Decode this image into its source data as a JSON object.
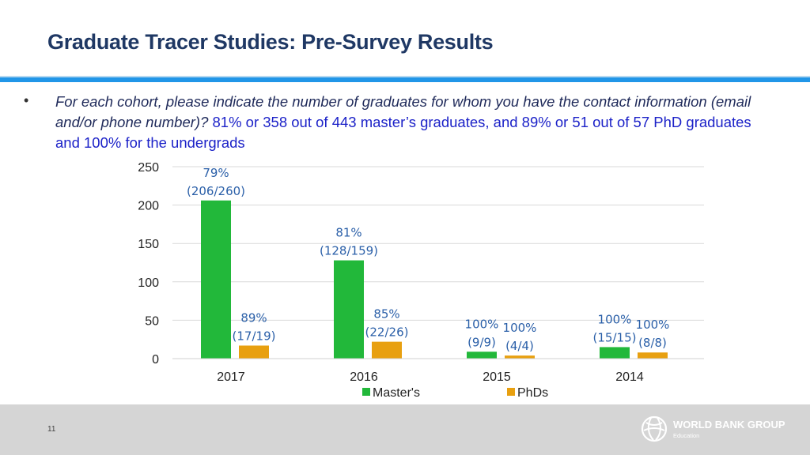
{
  "slide": {
    "title": "Graduate Tracer Studies: Pre-Survey Results",
    "bullet_marker": "•",
    "question": "For each cohort, please indicate the number of graduates for whom you have the contact information (email and/or phone number)?",
    "answer": " 81% or 358 out of 443 master’s graduates, and 89% or 51 out of 57 PhD graduates and 100% for the undergrads",
    "page_number": "11"
  },
  "branding": {
    "logo_icon": "globe-icon",
    "name": "WORLD BANK GROUP",
    "subtitle": "Education"
  },
  "colors": {
    "title": "#1f3864",
    "accent_rule": "#2196e8",
    "masters": "#22b83a",
    "phds": "#e8a010",
    "label": "#2a5fa8",
    "axis_text": "#222222",
    "footer": "#d5d5d5"
  },
  "chart_data": {
    "type": "bar",
    "categories": [
      "2017",
      "2016",
      "2015",
      "2014"
    ],
    "series": [
      {
        "name": "Master's",
        "values": [
          206,
          128,
          9,
          15
        ],
        "labels": [
          [
            "79%",
            "(206/260)"
          ],
          [
            "81%",
            "(128/159)"
          ],
          [
            "100%",
            "(9/9)"
          ],
          [
            "100%",
            "(15/15)"
          ]
        ]
      },
      {
        "name": "PhDs",
        "values": [
          17,
          22,
          4,
          8
        ],
        "labels": [
          [
            "89%",
            "(17/19)"
          ],
          [
            "85%",
            "(22/26)"
          ],
          [
            "100%",
            "(4/4)"
          ],
          [
            "100%",
            "(8/8)"
          ]
        ]
      }
    ],
    "ylim": [
      0,
      250
    ],
    "yticks": [
      0,
      50,
      100,
      150,
      200,
      250
    ],
    "grid": true,
    "legend": "bottom",
    "title": "",
    "xlabel": "",
    "ylabel": ""
  }
}
